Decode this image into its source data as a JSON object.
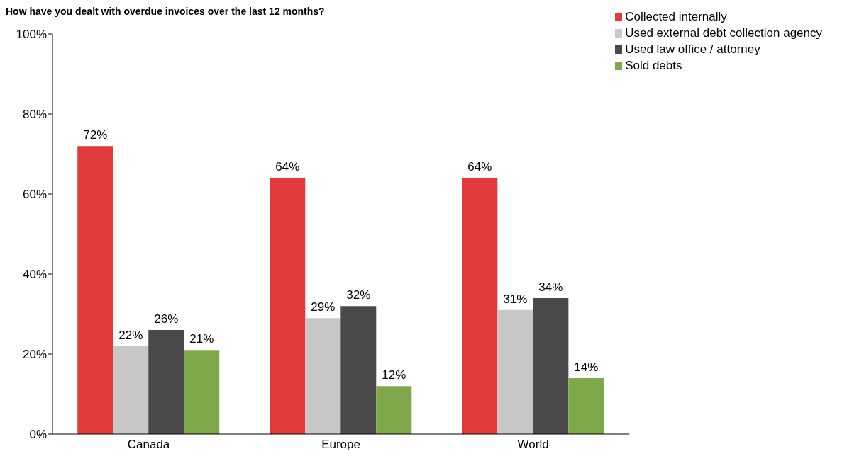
{
  "chart_data": {
    "type": "bar",
    "title": "How have you dealt with overdue invoices over the last 12 months?",
    "categories": [
      "Canada",
      "Europe",
      "World"
    ],
    "series": [
      {
        "name": "Collected internally",
        "color": "#e03a3a",
        "values": [
          72,
          64,
          64
        ],
        "value_labels": [
          "72%",
          "64%",
          "64%"
        ]
      },
      {
        "name": "Used external debt collection agency",
        "color": "#c8c8c8",
        "values": [
          22,
          29,
          31
        ],
        "value_labels": [
          "22%",
          "29%",
          "31%"
        ]
      },
      {
        "name": "Used law office / attorney",
        "color": "#4a4a4a",
        "values": [
          26,
          32,
          34
        ],
        "value_labels": [
          "26%",
          "32%",
          "34%"
        ]
      },
      {
        "name": "Sold debts",
        "color": "#7fa84a",
        "values": [
          21,
          12,
          14
        ],
        "value_labels": [
          "21%",
          "12%",
          "14%"
        ]
      }
    ],
    "ylim": [
      0,
      100
    ],
    "yticks": [
      {
        "value": 0,
        "label": "0%"
      },
      {
        "value": 20,
        "label": "20%"
      },
      {
        "value": 40,
        "label": "40%"
      },
      {
        "value": 60,
        "label": "60%"
      },
      {
        "value": 80,
        "label": "80%"
      },
      {
        "value": 100,
        "label": "100%"
      }
    ],
    "grid": false,
    "legend": "top right"
  }
}
